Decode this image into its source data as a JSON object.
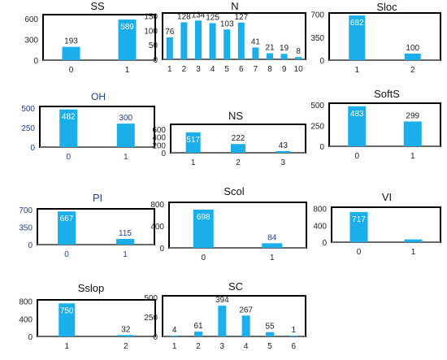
{
  "colors": {
    "bar": "#1aaeea",
    "frame": "#000000",
    "text": "#222222",
    "blue_text": "#1f3f8f"
  },
  "chart_data": [
    {
      "type": "bar",
      "title": "SS",
      "categories": [
        "0",
        "1"
      ],
      "values": [
        193,
        589
      ],
      "yticks": [
        0,
        300,
        600
      ],
      "ylim": [
        0,
        660
      ],
      "inside_labels": [
        false,
        true
      ]
    },
    {
      "type": "bar",
      "title": "N",
      "categories": [
        "1",
        "2",
        "3",
        "4",
        "5",
        "6",
        "7",
        "8",
        "9",
        "10"
      ],
      "values": [
        76,
        128,
        134,
        125,
        103,
        127,
        41,
        21,
        19,
        8
      ],
      "yticks": [
        0,
        50,
        100,
        150
      ],
      "ylim": [
        0,
        160
      ]
    },
    {
      "type": "bar",
      "title": "Sloc",
      "categories": [
        "1",
        "2"
      ],
      "values": [
        682,
        100
      ],
      "yticks": [
        0,
        350,
        700
      ],
      "ylim": [
        0,
        720
      ],
      "inside_labels": [
        true,
        false
      ]
    },
    {
      "type": "bar",
      "title": "OH",
      "categories": [
        "0",
        "1"
      ],
      "values": [
        482,
        300
      ],
      "yticks": [
        0,
        250,
        500
      ],
      "ylim": [
        0,
        520
      ],
      "inside_labels": [
        true,
        false
      ],
      "blue_text": true
    },
    {
      "type": "bar",
      "title": "NS",
      "categories": [
        "1",
        "2",
        "3"
      ],
      "values": [
        517,
        222,
        43
      ],
      "yticks": [
        0,
        200,
        400,
        600
      ],
      "ylim": [
        0,
        720
      ],
      "inside_labels": [
        true,
        false,
        false
      ]
    },
    {
      "type": "bar",
      "title": "SoftS",
      "categories": [
        "0",
        "1"
      ],
      "values": [
        483,
        299
      ],
      "yticks": [
        0,
        250,
        500
      ],
      "ylim": [
        0,
        520
      ],
      "inside_labels": [
        true,
        false
      ]
    },
    {
      "type": "bar",
      "title": "PI",
      "categories": [
        "0",
        "1"
      ],
      "values": [
        667,
        115
      ],
      "yticks": [
        0,
        350,
        700
      ],
      "ylim": [
        0,
        720
      ],
      "inside_labels": [
        true,
        false
      ],
      "blue_text": true
    },
    {
      "type": "bar",
      "title": "Scol",
      "categories": [
        "0",
        "1"
      ],
      "values": [
        698,
        84
      ],
      "yticks": [
        0,
        400,
        800
      ],
      "ylim": [
        0,
        830
      ],
      "inside_labels": [
        true,
        false
      ],
      "value_color": "#1f3f8f"
    },
    {
      "type": "bar",
      "title": "VI",
      "categories": [
        "0",
        "1"
      ],
      "values": [
        717,
        65
      ],
      "yticks": [
        0,
        400,
        800
      ],
      "ylim": [
        0,
        830
      ],
      "inside_labels": [
        true
      ],
      "labels_shown": [
        true,
        false
      ]
    },
    {
      "type": "bar",
      "title": "Sslop",
      "categories": [
        "1",
        "2"
      ],
      "values": [
        750,
        32
      ],
      "yticks": [
        0,
        400,
        800
      ],
      "ylim": [
        0,
        830
      ],
      "inside_labels": [
        true,
        false
      ]
    },
    {
      "type": "bar",
      "title": "SC",
      "categories": [
        "1",
        "2",
        "3",
        "4",
        "5",
        "6"
      ],
      "values": [
        4,
        61,
        394,
        267,
        55,
        1
      ],
      "yticks": [
        0,
        250,
        500
      ],
      "ylim": [
        0,
        520
      ]
    }
  ]
}
